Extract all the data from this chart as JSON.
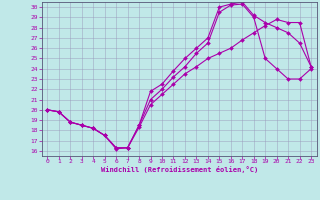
{
  "title": "",
  "xlabel": "Windchill (Refroidissement éolien,°C)",
  "background_color": "#c0e8e8",
  "line_color": "#aa00aa",
  "xlim": [
    -0.5,
    23.5
  ],
  "ylim": [
    15.5,
    30.5
  ],
  "xticks": [
    0,
    1,
    2,
    3,
    4,
    5,
    6,
    7,
    8,
    9,
    10,
    11,
    12,
    13,
    14,
    15,
    16,
    17,
    18,
    19,
    20,
    21,
    22,
    23
  ],
  "yticks": [
    16,
    17,
    18,
    19,
    20,
    21,
    22,
    23,
    24,
    25,
    26,
    27,
    28,
    29,
    30
  ],
  "grid_color": "#9999bb",
  "curve1_x": [
    0,
    1,
    2,
    3,
    4,
    5,
    6,
    7,
    8,
    9,
    10,
    11,
    12,
    13,
    14,
    15,
    16,
    17,
    18,
    19,
    20,
    21,
    22,
    23
  ],
  "curve1_y": [
    20.0,
    19.8,
    18.8,
    18.5,
    18.2,
    17.5,
    16.2,
    16.3,
    18.3,
    20.5,
    21.5,
    22.5,
    23.5,
    24.2,
    25.0,
    25.5,
    26.0,
    26.8,
    27.5,
    28.2,
    28.8,
    28.5,
    28.5,
    24.2
  ],
  "curve2_x": [
    0,
    1,
    2,
    3,
    4,
    5,
    6,
    7,
    8,
    9,
    10,
    11,
    12,
    13,
    14,
    15,
    16,
    17,
    18,
    19,
    20,
    21,
    22,
    23
  ],
  "curve2_y": [
    20.0,
    19.8,
    18.8,
    18.5,
    18.2,
    17.5,
    16.3,
    16.3,
    18.5,
    21.0,
    22.0,
    23.2,
    24.2,
    25.5,
    26.5,
    29.5,
    30.2,
    30.3,
    29.0,
    25.0,
    24.0,
    23.0,
    23.0,
    24.0
  ],
  "curve3_x": [
    0,
    1,
    2,
    3,
    4,
    5,
    6,
    7,
    8,
    9,
    10,
    11,
    12,
    13,
    14,
    15,
    16,
    17,
    18,
    19,
    20,
    21,
    22,
    23
  ],
  "curve3_y": [
    20.0,
    19.8,
    18.8,
    18.5,
    18.2,
    17.5,
    16.3,
    16.3,
    18.5,
    21.8,
    22.5,
    23.8,
    25.0,
    26.0,
    27.0,
    30.0,
    30.3,
    30.5,
    29.2,
    28.5,
    28.0,
    27.5,
    26.5,
    24.2
  ]
}
